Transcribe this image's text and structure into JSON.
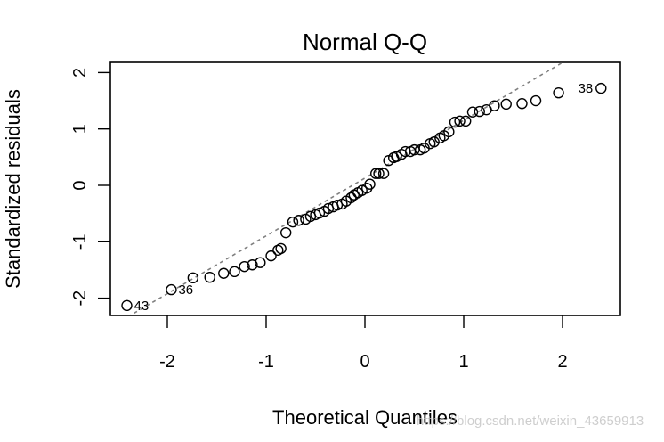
{
  "chart_data": {
    "type": "scatter",
    "title": "Normal Q-Q",
    "xlabel": "Theoretical Quantiles",
    "ylabel": "Standardized residuals",
    "xlim": [
      -2.6,
      2.6
    ],
    "ylim": [
      -2.3,
      2.2
    ],
    "xticks": [
      -2,
      -1,
      0,
      1,
      2
    ],
    "yticks": [
      -2,
      -1,
      0,
      1,
      2
    ],
    "grid": false,
    "legend": null,
    "reference_line": {
      "style": "dashed",
      "color": "#808080",
      "points": [
        [
          -2.4,
          -2.33
        ],
        [
          2.1,
          2.28
        ]
      ]
    },
    "points": [
      [
        -2.41,
        -2.13
      ],
      [
        -1.96,
        -1.85
      ],
      [
        -1.74,
        -1.64
      ],
      [
        -1.57,
        -1.63
      ],
      [
        -1.43,
        -1.56
      ],
      [
        -1.32,
        -1.53
      ],
      [
        -1.22,
        -1.44
      ],
      [
        -1.14,
        -1.41
      ],
      [
        -1.06,
        -1.37
      ],
      [
        -0.95,
        -1.25
      ],
      [
        -0.88,
        -1.15
      ],
      [
        -0.85,
        -1.12
      ],
      [
        -0.8,
        -0.84
      ],
      [
        -0.73,
        -0.65
      ],
      [
        -0.67,
        -0.62
      ],
      [
        -0.6,
        -0.6
      ],
      [
        -0.55,
        -0.55
      ],
      [
        -0.5,
        -0.52
      ],
      [
        -0.46,
        -0.49
      ],
      [
        -0.41,
        -0.46
      ],
      [
        -0.37,
        -0.41
      ],
      [
        -0.32,
        -0.38
      ],
      [
        -0.28,
        -0.35
      ],
      [
        -0.23,
        -0.33
      ],
      [
        -0.19,
        -0.28
      ],
      [
        -0.14,
        -0.22
      ],
      [
        -0.11,
        -0.17
      ],
      [
        -0.07,
        -0.13
      ],
      [
        -0.03,
        -0.09
      ],
      [
        0.02,
        -0.05
      ],
      [
        0.05,
        0.02
      ],
      [
        0.11,
        0.21
      ],
      [
        0.14,
        0.21
      ],
      [
        0.19,
        0.21
      ],
      [
        0.24,
        0.44
      ],
      [
        0.29,
        0.49
      ],
      [
        0.32,
        0.51
      ],
      [
        0.37,
        0.55
      ],
      [
        0.41,
        0.6
      ],
      [
        0.46,
        0.6
      ],
      [
        0.5,
        0.63
      ],
      [
        0.56,
        0.63
      ],
      [
        0.6,
        0.66
      ],
      [
        0.66,
        0.74
      ],
      [
        0.7,
        0.77
      ],
      [
        0.76,
        0.84
      ],
      [
        0.8,
        0.88
      ],
      [
        0.85,
        0.95
      ],
      [
        0.91,
        1.12
      ],
      [
        0.96,
        1.14
      ],
      [
        1.02,
        1.14
      ],
      [
        1.09,
        1.3
      ],
      [
        1.16,
        1.31
      ],
      [
        1.23,
        1.34
      ],
      [
        1.31,
        1.41
      ],
      [
        1.43,
        1.44
      ],
      [
        1.59,
        1.45
      ],
      [
        1.73,
        1.5
      ],
      [
        1.96,
        1.64
      ],
      [
        2.39,
        1.72
      ]
    ],
    "point_labels": [
      {
        "index": 0,
        "text": "43"
      },
      {
        "index": 1,
        "text": "36"
      },
      {
        "index": 59,
        "text": "38"
      }
    ]
  },
  "watermark": "https://blog.csdn.net/weixin_43659913"
}
